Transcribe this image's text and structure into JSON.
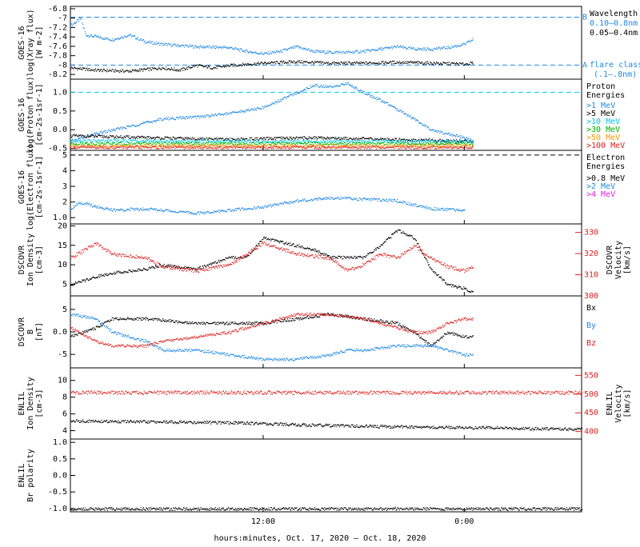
{
  "x_axis": {
    "ticks": [
      {
        "label": "12:00",
        "hours": 12
      },
      {
        "label": "0:00",
        "hours": 24
      }
    ],
    "range_hours": [
      0.5,
      31.0
    ],
    "label": "hours:minutes, Oct. 17, 2020 — Oct. 18, 2020"
  },
  "colors": {
    "black": "#000000",
    "blue": "#1e88e5",
    "cyan": "#00c8e6",
    "red": "#e02020",
    "green": "#00b000",
    "orange": "#ff9900",
    "magenta": "#e020e0"
  },
  "chart_data": [
    {
      "id": "xray",
      "type": "scatter",
      "ylabel": [
        "GOES-16",
        "log(Xray flux)",
        "[W m-2]"
      ],
      "yticks": [
        -6.8,
        -7.0,
        -7.2,
        -7.4,
        -7.6,
        -7.8,
        -8.0,
        -8.2
      ],
      "ylim": [
        -8.3,
        -6.75
      ],
      "refs": [
        {
          "y": -6.98,
          "label": "B"
        },
        {
          "y": -8.0,
          "label": "A"
        }
      ],
      "legend_title": "Wavelength",
      "legend": [
        "0.10–0.8nm",
        "0.05–0.4nm"
      ],
      "legend2": [
        "flare class",
        "(.1–.8nm)"
      ],
      "series": [
        {
          "name": "0.10–0.8nm",
          "color": "blue",
          "points": [
            [
              0.5,
              -7.15
            ],
            [
              1.1,
              -7.0
            ],
            [
              1.4,
              -7.35
            ],
            [
              3,
              -7.45
            ],
            [
              4,
              -7.35
            ],
            [
              5,
              -7.5
            ],
            [
              6,
              -7.55
            ],
            [
              8,
              -7.6
            ],
            [
              10,
              -7.62
            ],
            [
              11,
              -7.7
            ],
            [
              12,
              -7.75
            ],
            [
              13,
              -7.7
            ],
            [
              14,
              -7.6
            ],
            [
              15,
              -7.7
            ],
            [
              16,
              -7.72
            ],
            [
              17,
              -7.72
            ],
            [
              18,
              -7.7
            ],
            [
              19,
              -7.65
            ],
            [
              20,
              -7.6
            ],
            [
              21,
              -7.65
            ],
            [
              22,
              -7.65
            ],
            [
              23,
              -7.62
            ],
            [
              24,
              -7.55
            ],
            [
              24.5,
              -7.45
            ]
          ]
        },
        {
          "name": "0.05–0.4nm",
          "color": "black",
          "points": [
            [
              0.5,
              -8.05
            ],
            [
              2,
              -8.1
            ],
            [
              4,
              -8.12
            ],
            [
              6,
              -8.05
            ],
            [
              7,
              -8.1
            ],
            [
              8,
              -8.0
            ],
            [
              9,
              -8.05
            ],
            [
              10,
              -8.0
            ],
            [
              12,
              -7.95
            ],
            [
              14,
              -7.92
            ],
            [
              16,
              -7.95
            ],
            [
              18,
              -7.95
            ],
            [
              20,
              -7.93
            ],
            [
              22,
              -7.95
            ],
            [
              24,
              -7.97
            ],
            [
              24.5,
              -7.95
            ]
          ]
        }
      ]
    },
    {
      "id": "proton",
      "type": "scatter",
      "ylabel": [
        "GOES-16",
        "log(Proton flux)",
        "[cm-2s-1sr-1]"
      ],
      "yticks": [
        1.0,
        0.5,
        0.0,
        -0.5
      ],
      "ylim": [
        -0.55,
        1.35
      ],
      "refs": [
        {
          "y": 1.0
        }
      ],
      "legend_title": "Proton Energies",
      "legend": [
        ">1 MeV",
        ">5 MeV",
        ">10 MeV",
        ">30 MeV",
        ">50 MeV",
        ">100 MeV"
      ],
      "series": [
        {
          "name": ">1 MeV",
          "color": "blue",
          "points": [
            [
              0.5,
              -0.3
            ],
            [
              2,
              -0.1
            ],
            [
              4,
              0.1
            ],
            [
              6,
              0.3
            ],
            [
              8,
              0.35
            ],
            [
              10,
              0.45
            ],
            [
              12,
              0.6
            ],
            [
              13,
              0.8
            ],
            [
              14,
              1.0
            ],
            [
              15,
              1.2
            ],
            [
              16,
              1.15
            ],
            [
              17,
              1.25
            ],
            [
              18,
              1.0
            ],
            [
              19,
              0.8
            ],
            [
              20,
              0.55
            ],
            [
              21,
              0.3
            ],
            [
              22,
              0.0
            ],
            [
              23,
              -0.1
            ],
            [
              24,
              -0.2
            ],
            [
              24.5,
              -0.3
            ]
          ]
        },
        {
          "name": ">5 MeV",
          "color": "black",
          "points": [
            [
              0.5,
              -0.15
            ],
            [
              5,
              -0.2
            ],
            [
              10,
              -0.25
            ],
            [
              15,
              -0.2
            ],
            [
              20,
              -0.25
            ],
            [
              24.5,
              -0.3
            ]
          ]
        },
        {
          "name": ">10 MeV",
          "color": "cyan",
          "points": [
            [
              0.5,
              -0.28
            ],
            [
              12,
              -0.3
            ],
            [
              24.5,
              -0.3
            ]
          ]
        },
        {
          "name": ">30 MeV",
          "color": "green",
          "points": [
            [
              0.5,
              -0.36
            ],
            [
              12,
              -0.36
            ],
            [
              24.5,
              -0.36
            ]
          ]
        },
        {
          "name": ">50 MeV",
          "color": "orange",
          "points": [
            [
              0.5,
              -0.42
            ],
            [
              12,
              -0.42
            ],
            [
              24.5,
              -0.42
            ]
          ]
        },
        {
          "name": ">100 MeV",
          "color": "red",
          "points": [
            [
              0.5,
              -0.46
            ],
            [
              12,
              -0.46
            ],
            [
              24.5,
              -0.46
            ]
          ]
        }
      ]
    },
    {
      "id": "electron",
      "type": "scatter",
      "ylabel": [
        "GOES-16",
        "log(Electron flux)",
        "[cm-2s-1sr-1]"
      ],
      "yticks": [
        5,
        4,
        3,
        2,
        1
      ],
      "ylim": [
        0.6,
        5.3
      ],
      "refs": [
        {
          "y": 5.0
        }
      ],
      "legend_title": "Electron Energies",
      "legend": [
        ">0.8 MeV",
        ">2 MeV",
        ">4 MeV"
      ],
      "series": [
        {
          "name": ">2 MeV",
          "color": "blue",
          "points": [
            [
              0.5,
              1.6
            ],
            [
              1,
              2.0
            ],
            [
              3,
              1.5
            ],
            [
              5,
              1.6
            ],
            [
              8,
              1.3
            ],
            [
              10,
              1.5
            ],
            [
              12,
              1.7
            ],
            [
              14,
              2.1
            ],
            [
              16,
              2.3
            ],
            [
              18,
              2.2
            ],
            [
              20,
              2.1
            ],
            [
              22,
              1.6
            ],
            [
              24,
              1.5
            ]
          ]
        }
      ]
    },
    {
      "id": "dscovr_density",
      "type": "scatter",
      "ylabel": [
        "DSCOVR",
        "Ion Density",
        "[cm-3]"
      ],
      "yticks": [
        20,
        15,
        10,
        5
      ],
      "ylim": [
        2,
        20.5
      ],
      "y2label": [
        "DSCOVR",
        "Velocity",
        "[km/s]"
      ],
      "y2ticks": [
        330,
        320,
        310,
        300
      ],
      "y2lim": [
        300,
        334
      ],
      "series": [
        {
          "name": "Ion Density",
          "color": "black",
          "points": [
            [
              0.5,
              5
            ],
            [
              2,
              7
            ],
            [
              3,
              8
            ],
            [
              5,
              9
            ],
            [
              6,
              10
            ],
            [
              8,
              9
            ],
            [
              10,
              12
            ],
            [
              11,
              12
            ],
            [
              12,
              17
            ],
            [
              13,
              16
            ],
            [
              15,
              14
            ],
            [
              16,
              12
            ],
            [
              17,
              12
            ],
            [
              18,
              12
            ],
            [
              19,
              15
            ],
            [
              20,
              19
            ],
            [
              21,
              17
            ],
            [
              22,
              9
            ],
            [
              23,
              5
            ],
            [
              24,
              4
            ],
            [
              24.5,
              3
            ]
          ]
        },
        {
          "name": "Velocity",
          "color": "red",
          "axis": "right",
          "points": [
            [
              0.5,
              318
            ],
            [
              2,
              325
            ],
            [
              3,
              320
            ],
            [
              5,
              318
            ],
            [
              6,
              314
            ],
            [
              8,
              312
            ],
            [
              10,
              315
            ],
            [
              12,
              325
            ],
            [
              14,
              320
            ],
            [
              16,
              318
            ],
            [
              17,
              312
            ],
            [
              18,
              315
            ],
            [
              19,
              320
            ],
            [
              20,
              318
            ],
            [
              21,
              324
            ],
            [
              22,
              318
            ],
            [
              23,
              314
            ],
            [
              24,
              312
            ],
            [
              24.5,
              314
            ]
          ]
        }
      ]
    },
    {
      "id": "dscovr_field",
      "type": "scatter",
      "ylabel": [
        "DSCOVR",
        "B",
        "[nT]"
      ],
      "yticks": [
        5,
        0,
        -5
      ],
      "ylim": [
        -8,
        8
      ],
      "legend": [
        "Bx",
        "By",
        "Bz"
      ],
      "series": [
        {
          "name": "Bx",
          "color": "black",
          "points": [
            [
              0.5,
              -1
            ],
            [
              2,
              1
            ],
            [
              3,
              3
            ],
            [
              5,
              3
            ],
            [
              8,
              2
            ],
            [
              10,
              2
            ],
            [
              12,
              2
            ],
            [
              14,
              3
            ],
            [
              16,
              4
            ],
            [
              18,
              3
            ],
            [
              20,
              2
            ],
            [
              21,
              0
            ],
            [
              22,
              -3
            ],
            [
              23,
              0
            ],
            [
              24,
              -1
            ],
            [
              24.5,
              -1
            ]
          ]
        },
        {
          "name": "By",
          "color": "blue",
          "points": [
            [
              0.5,
              4
            ],
            [
              2,
              3
            ],
            [
              3,
              0
            ],
            [
              5,
              -2
            ],
            [
              6,
              -4
            ],
            [
              8,
              -4
            ],
            [
              10,
              -5
            ],
            [
              12,
              -6
            ],
            [
              14,
              -6
            ],
            [
              16,
              -5
            ],
            [
              17,
              -4
            ],
            [
              18,
              -4
            ],
            [
              20,
              -3
            ],
            [
              22,
              -3
            ],
            [
              23,
              -4
            ],
            [
              24,
              -5
            ],
            [
              24.5,
              -5
            ]
          ]
        },
        {
          "name": "Bz",
          "color": "red",
          "points": [
            [
              0.5,
              1
            ],
            [
              2,
              -2
            ],
            [
              3,
              -3
            ],
            [
              5,
              -3
            ],
            [
              6,
              -2
            ],
            [
              8,
              -1
            ],
            [
              10,
              0
            ],
            [
              12,
              2
            ],
            [
              14,
              4
            ],
            [
              16,
              4
            ],
            [
              18,
              3
            ],
            [
              20,
              1
            ],
            [
              21,
              0
            ],
            [
              22,
              0
            ],
            [
              23,
              2
            ],
            [
              24,
              3
            ],
            [
              24.5,
              3
            ]
          ]
        }
      ]
    },
    {
      "id": "enlil_density",
      "type": "scatter",
      "ylabel": [
        "ENLIL",
        "Ion Density",
        "[cm-3]"
      ],
      "yticks": [
        10,
        8,
        6,
        4
      ],
      "ylim": [
        3,
        11.5
      ],
      "y2label": [
        "ENLIL",
        "Velocity",
        "[km/s]"
      ],
      "y2ticks": [
        550,
        500,
        450,
        400
      ],
      "y2lim": [
        380,
        570
      ],
      "series": [
        {
          "name": "Ion Density",
          "color": "black",
          "points": [
            [
              0.5,
              5.2
            ],
            [
              5,
              5.1
            ],
            [
              10,
              5.0
            ],
            [
              15,
              4.7
            ],
            [
              20,
              4.5
            ],
            [
              25,
              4.4
            ],
            [
              31,
              4.2
            ]
          ]
        },
        {
          "name": "Velocity",
          "color": "red",
          "axis": "right",
          "points": [
            [
              0.5,
              505
            ],
            [
              10,
              505
            ],
            [
              20,
              505
            ],
            [
              31,
              505
            ]
          ]
        }
      ]
    },
    {
      "id": "enlil_polarity",
      "type": "scatter",
      "ylabel": [
        "ENLIL",
        "Br polarity"
      ],
      "yticks": [
        1.0,
        0.5,
        0.0,
        -0.5,
        -1.0
      ],
      "ylim": [
        -1.1,
        1.1
      ],
      "series": [
        {
          "name": "Br polarity",
          "color": "black",
          "points": [
            [
              0.5,
              -1.0
            ],
            [
              31,
              -1.0
            ]
          ]
        }
      ]
    }
  ]
}
